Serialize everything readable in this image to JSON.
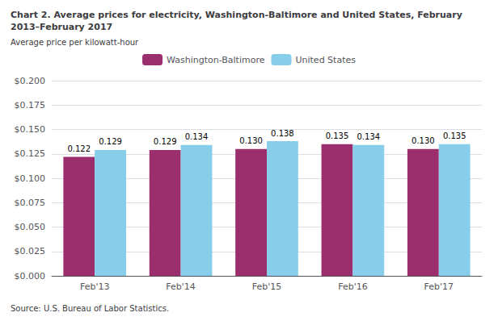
{
  "chart_data": {
    "type": "bar",
    "title": "Chart 2. Average prices for electricity, Washington-Baltimore and United States, February 2013–February 2017",
    "subtitle": "Average price per kilowatt-hour",
    "annotations": [
      "Source: U.S. Bureau of Labor Statistics."
    ],
    "categories": [
      "Feb'13",
      "Feb'14",
      "Feb'15",
      "Feb'16",
      "Feb'17"
    ],
    "series": [
      {
        "name": "Washington-Baltimore",
        "color": "#9B2F6E",
        "values": [
          0.122,
          0.129,
          0.13,
          0.135,
          0.13
        ],
        "value_labels": [
          "0.122",
          "0.129",
          "0.130",
          "0.135",
          "0.130"
        ]
      },
      {
        "name": "United States",
        "color": "#87CEEB",
        "values": [
          0.129,
          0.134,
          0.138,
          0.134,
          0.135
        ],
        "value_labels": [
          "0.129",
          "0.134",
          "0.138",
          "0.134",
          "0.135"
        ]
      }
    ],
    "ylim": [
      0.0,
      0.2
    ],
    "yticks": [
      {
        "value": 0.0,
        "label": "$0.000"
      },
      {
        "value": 0.025,
        "label": "$0.025"
      },
      {
        "value": 0.05,
        "label": "$0.050"
      },
      {
        "value": 0.075,
        "label": "$0.075"
      },
      {
        "value": 0.1,
        "label": "$0.100"
      },
      {
        "value": 0.125,
        "label": "$0.125"
      },
      {
        "value": 0.15,
        "label": "$0.150"
      },
      {
        "value": 0.175,
        "label": "$0.175"
      },
      {
        "value": 0.2,
        "label": "$0.200"
      }
    ],
    "grid": true,
    "legend": "top",
    "data_labels": true
  }
}
